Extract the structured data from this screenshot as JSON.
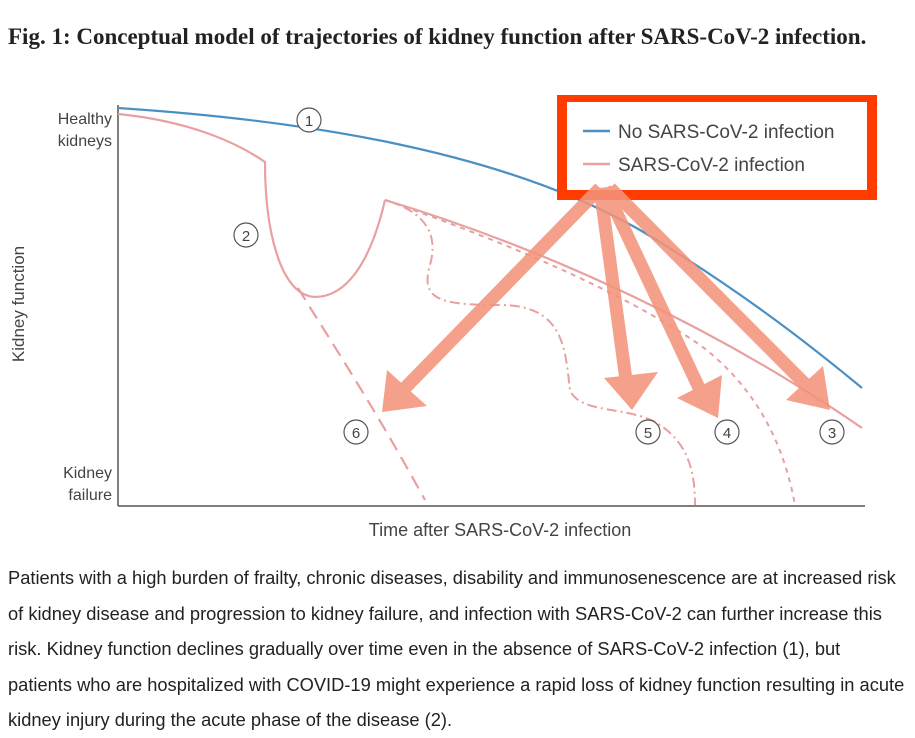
{
  "figure": {
    "title": "Fig. 1: Conceptual model of trajectories of kidney function after SARS-CoV-2 infection.",
    "y_axis_label": "Kidney function",
    "y_top_label": [
      "Healthy",
      "kidneys"
    ],
    "y_bottom_label": [
      "Kidney",
      "failure"
    ],
    "x_axis_label": "Time after SARS-CoV-2 infection",
    "legend": [
      {
        "label": "No SARS-CoV-2 infection",
        "color": "#4a90c4"
      },
      {
        "label": "SARS-CoV-2 infection",
        "color": "#e8a0a0"
      }
    ],
    "markers": [
      "1",
      "2",
      "3",
      "4",
      "5",
      "6"
    ],
    "highlight_color": "#ff3b00",
    "arrow_color": "#f4937a"
  },
  "caption": "Patients with a high burden of frailty, chronic diseases, disability and immunosenescence are at increased risk of kidney disease and progression to kidney failure, and infection with SARS-CoV-2 can further increase this risk. Kidney function declines gradually over time even in the absence of SARS-CoV-2 infection (1), but patients who are hospitalized with COVID-19 might experience a rapid loss of kidney function resulting in acute kidney injury during the acute phase of the disease (2)."
}
